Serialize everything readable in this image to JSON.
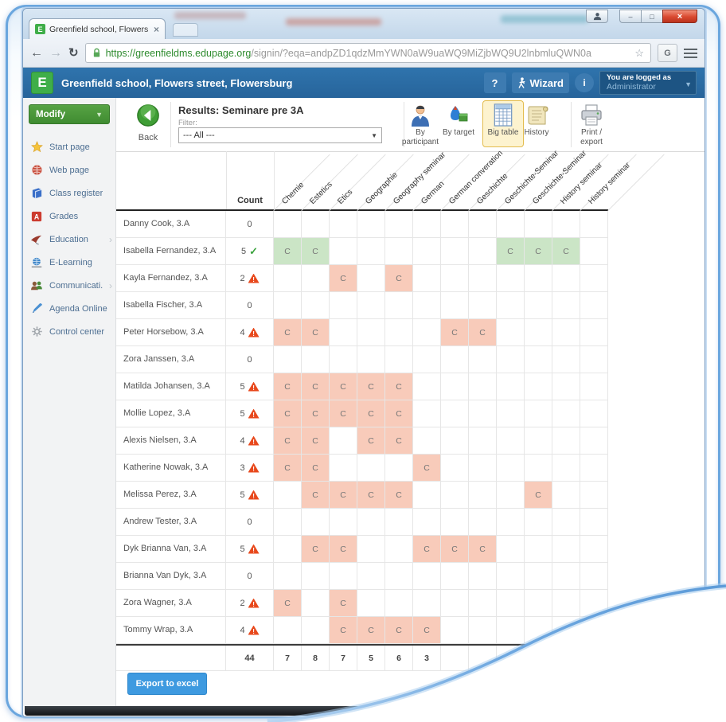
{
  "window_controls": {
    "minimize": "–",
    "maximize": "□",
    "close": "×",
    "profile": "profile"
  },
  "browser": {
    "tab_title": "Greenfield school, Flowers",
    "tab_close": "×",
    "url_scheme": "https://",
    "url_host": "greenfieldms.edupage.org",
    "url_path": "/signin/?eqa=andpZD1qdzMmYWN0aW9uaWQ9MiZjbWQ9U2lnbmluQWN0a",
    "bookmark_star": "☆",
    "extension_button": "G"
  },
  "app_header": {
    "logo_letter": "E",
    "school_name": "Greenfield school, Flowers street, Flowersburg",
    "help_label": "?",
    "wizard_label": "Wizard",
    "info_label": "i",
    "logged_as": "You are logged as",
    "user_role": "Administrator"
  },
  "sidebar": {
    "modify_label": "Modify",
    "items": [
      {
        "label": "Start page",
        "icon": "star",
        "chevron": false
      },
      {
        "label": "Web page",
        "icon": "webpage",
        "chevron": false
      },
      {
        "label": "Class register",
        "icon": "book",
        "chevron": false
      },
      {
        "label": "Grades",
        "icon": "grades",
        "chevron": false
      },
      {
        "label": "Education",
        "icon": "education",
        "chevron": true
      },
      {
        "label": "E-Learning",
        "icon": "elearning",
        "chevron": false
      },
      {
        "label": "Communicati...",
        "icon": "communication",
        "chevron": true
      },
      {
        "label": "Agenda Online",
        "icon": "agenda",
        "chevron": false
      },
      {
        "label": "Control center",
        "icon": "control",
        "chevron": false
      }
    ]
  },
  "toolbar": {
    "back_label": "Back",
    "title": "Results: Seminare pre 3A",
    "filter_label": "Filter:",
    "filter_value": "--- All ---",
    "buttons": [
      {
        "label": "By participant",
        "icon": "participant",
        "selected": false
      },
      {
        "label": "By target",
        "icon": "target",
        "selected": false
      },
      {
        "label": "Big table",
        "icon": "bigtable",
        "selected": true
      },
      {
        "label": "History",
        "icon": "history",
        "selected": false
      },
      {
        "label": "Print / export",
        "icon": "print",
        "selected": false
      }
    ]
  },
  "table": {
    "count_header": "Count",
    "cell_mark": "C",
    "columns": [
      "Chemie",
      "Estetics",
      "Etics",
      "Geographie",
      "Geography seminar",
      "German",
      "German converation",
      "Geschichte",
      "Geschichte-Seminar",
      "Geschichte-Seminar",
      "History seminar",
      "History seminar"
    ],
    "rows": [
      {
        "name": "Danny Cook, 3.A",
        "count": 0,
        "status": "none",
        "cells": []
      },
      {
        "name": "Isabella Fernandez, 3.A",
        "count": 5,
        "status": "ok",
        "cells": [
          1,
          2,
          9,
          10,
          11
        ]
      },
      {
        "name": "Kayla Fernandez, 3.A",
        "count": 2,
        "status": "warning",
        "cells": [
          3,
          5
        ]
      },
      {
        "name": "Isabella Fischer, 3.A",
        "count": 0,
        "status": "none",
        "cells": []
      },
      {
        "name": "Peter Horsebow, 3.A",
        "count": 4,
        "status": "warning",
        "cells": [
          1,
          2,
          7,
          8
        ]
      },
      {
        "name": "Zora Janssen, 3.A",
        "count": 0,
        "status": "none",
        "cells": []
      },
      {
        "name": "Matilda Johansen, 3.A",
        "count": 5,
        "status": "warning",
        "cells": [
          1,
          2,
          3,
          4,
          5
        ]
      },
      {
        "name": "Mollie Lopez, 3.A",
        "count": 5,
        "status": "warning",
        "cells": [
          1,
          2,
          3,
          4,
          5
        ]
      },
      {
        "name": "Alexis Nielsen, 3.A",
        "count": 4,
        "status": "warning",
        "cells": [
          1,
          2,
          4,
          5
        ]
      },
      {
        "name": "Katherine Nowak, 3.A",
        "count": 3,
        "status": "warning",
        "cells": [
          1,
          2,
          6
        ]
      },
      {
        "name": "Melissa Perez, 3.A",
        "count": 5,
        "status": "warning",
        "cells": [
          2,
          3,
          4,
          5,
          10
        ]
      },
      {
        "name": "Andrew Tester, 3.A",
        "count": 0,
        "status": "none",
        "cells": []
      },
      {
        "name": "Dyk Brianna Van, 3.A",
        "count": 5,
        "status": "warning",
        "cells": [
          2,
          3,
          6,
          7,
          8
        ]
      },
      {
        "name": "Brianna Van Dyk, 3.A",
        "count": 0,
        "status": "none",
        "cells": []
      },
      {
        "name": "Zora Wagner, 3.A",
        "count": 2,
        "status": "warning",
        "cells": [
          1,
          3
        ]
      },
      {
        "name": "Tommy Wrap, 3.A",
        "count": 4,
        "status": "warning",
        "cells": [
          3,
          4,
          5,
          6
        ]
      }
    ],
    "totals": {
      "count_total": 44,
      "visible_column_totals": [
        7,
        8,
        7,
        5,
        6,
        3
      ]
    }
  },
  "footer": {
    "export_label": "Export to excel"
  },
  "colors": {
    "header_blue": "#2f74ad",
    "logo_green": "#3fae49",
    "modify_green": "#4a9a3c",
    "cell_green": "#cbe5c6",
    "cell_pink": "#f8cbba",
    "ok_green": "#3aa23d",
    "warning_orange": "#e8491d",
    "selected_tool_bg": "#fdf3cf",
    "selected_tool_border": "#e3bc4e",
    "export_blue": "#3e9ae0"
  }
}
